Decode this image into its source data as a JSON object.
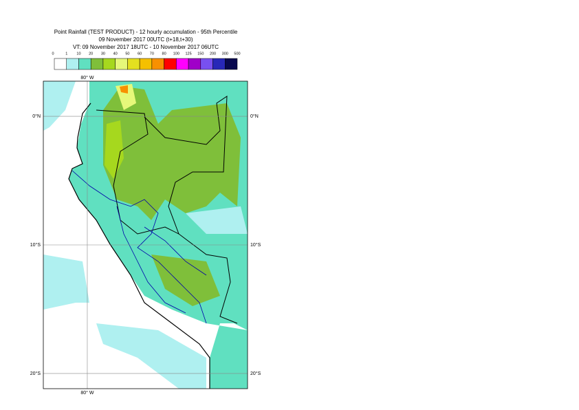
{
  "header": {
    "lines": [
      "Point Rainfall (TEST PRODUCT) - 12 hourly accumulation - 95th Percentile",
      "09 November 2017 00UTC (t+18,t+30)",
      "VT: 09 November 2017 18UTC - 10 November 2017 06UTC"
    ]
  },
  "legend": {
    "ticks": [
      0,
      1,
      10,
      20,
      30,
      40,
      50,
      60,
      70,
      80,
      100,
      125,
      150,
      200,
      300,
      500
    ],
    "colors": [
      "#ffffff",
      "#aff0f0",
      "#60e0c0",
      "#7fbf3a",
      "#a6d81e",
      "#e6f87a",
      "#e4e020",
      "#f5c000",
      "#f89000",
      "#ff0000",
      "#ff00ff",
      "#a000c8",
      "#7850f0",
      "#2828b8",
      "#08084e"
    ]
  },
  "map": {
    "lonlim": [
      -83.42,
      -67.54
    ],
    "latlim": [
      2.73,
      -21.18
    ],
    "meridians": [
      {
        "value": -80,
        "label": "80° W"
      }
    ],
    "parallels": [
      {
        "value": 0,
        "label": "0°N"
      },
      {
        "value": -10,
        "label": "10°S"
      },
      {
        "value": -20,
        "label": "20°S"
      }
    ]
  }
}
